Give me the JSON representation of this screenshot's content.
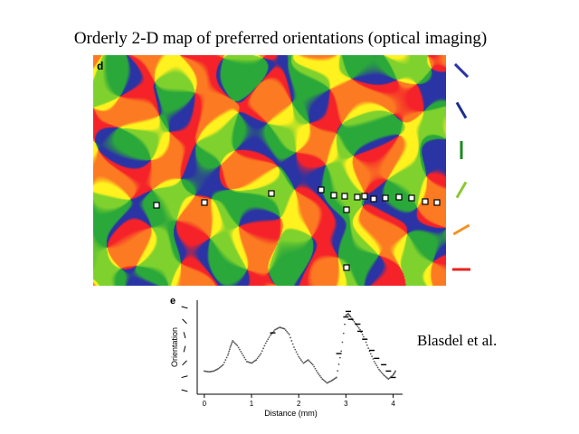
{
  "title": "Orderly 2-D map of preferred orientations (optical imaging)",
  "map": {
    "panel_label": "d",
    "colors": [
      "#f5222a",
      "#fb7a22",
      "#fff21e",
      "#7fd12e",
      "#2aa83a",
      "#2b34a4"
    ]
  },
  "legend": {
    "items": [
      {
        "color": "#2b34a4",
        "angle_deg": 135
      },
      {
        "color": "#1c2f8e",
        "angle_deg": 120
      },
      {
        "color": "#1e8a22",
        "angle_deg": 90
      },
      {
        "color": "#8bc932",
        "angle_deg": 60
      },
      {
        "color": "#f29221",
        "angle_deg": 30
      },
      {
        "color": "#e8221f",
        "angle_deg": 0
      }
    ]
  },
  "chart_data": {
    "type": "scatter",
    "panel_label": "e",
    "xlabel": "Distance (mm)",
    "ylabel": "Orientation",
    "xlim": [
      -0.15,
      4.2
    ],
    "xticks": [
      0,
      1,
      2,
      3,
      4
    ],
    "series": [
      {
        "x": [
          0.0,
          0.1,
          0.2,
          0.3,
          0.4,
          0.5,
          0.55,
          0.6,
          0.7,
          0.8,
          0.9,
          1.0,
          1.1,
          1.2,
          1.3,
          1.4,
          1.5,
          1.6,
          1.7,
          1.8,
          1.9,
          2.0,
          2.1,
          2.2,
          2.3,
          2.4,
          2.5,
          2.6,
          2.7,
          2.8,
          2.9,
          3.0,
          3.05,
          3.1,
          3.2,
          3.3,
          3.4,
          3.5,
          3.6,
          3.7,
          3.8,
          3.9,
          4.0,
          4.05
        ],
        "y": [
          20,
          19,
          20,
          23,
          28,
          40,
          50,
          58,
          52,
          42,
          32,
          30,
          34,
          42,
          55,
          65,
          72,
          75,
          73,
          66,
          50,
          38,
          30,
          34,
          28,
          18,
          10,
          5,
          8,
          12,
          45,
          90,
          92,
          88,
          80,
          72,
          60,
          45,
          32,
          22,
          15,
          10,
          15,
          20
        ]
      }
    ],
    "markers": {
      "x": [
        1.45,
        2.85,
        3.0,
        3.05,
        3.1,
        3.25,
        3.3,
        3.4,
        3.55,
        3.65,
        3.8,
        3.9,
        4.0
      ],
      "y": [
        68,
        42,
        88,
        95,
        85,
        79,
        70,
        60,
        46,
        36,
        28,
        20,
        12
      ]
    },
    "orientation_ticks_deg": [
      165,
      135,
      105,
      75,
      45,
      15,
      165
    ]
  },
  "credit": "Blasdel et al."
}
